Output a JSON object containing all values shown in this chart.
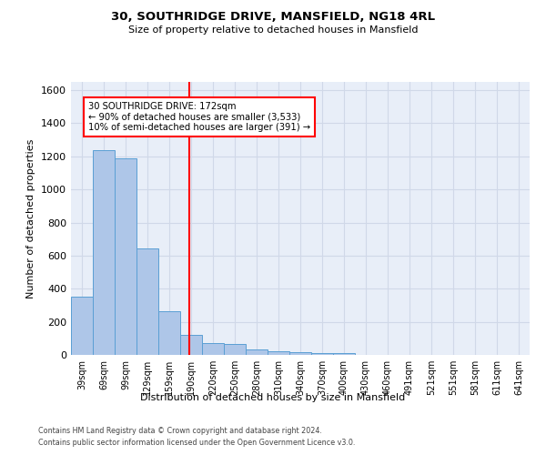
{
  "title": "30, SOUTHRIDGE DRIVE, MANSFIELD, NG18 4RL",
  "subtitle": "Size of property relative to detached houses in Mansfield",
  "xlabel": "Distribution of detached houses by size in Mansfield",
  "ylabel": "Number of detached properties",
  "footnote1": "Contains HM Land Registry data © Crown copyright and database right 2024.",
  "footnote2": "Contains public sector information licensed under the Open Government Licence v3.0.",
  "bar_labels": [
    "39sqm",
    "69sqm",
    "99sqm",
    "129sqm",
    "159sqm",
    "190sqm",
    "220sqm",
    "250sqm",
    "280sqm",
    "310sqm",
    "340sqm",
    "370sqm",
    "400sqm",
    "430sqm",
    "460sqm",
    "491sqm",
    "521sqm",
    "551sqm",
    "581sqm",
    "611sqm",
    "641sqm"
  ],
  "bar_values": [
    350,
    1235,
    1190,
    645,
    265,
    120,
    70,
    68,
    35,
    20,
    15,
    12,
    12,
    0,
    0,
    0,
    0,
    0,
    0,
    0,
    0
  ],
  "bar_color": "#aec6e8",
  "bar_edge_color": "#5a9fd4",
  "ylim": [
    0,
    1650
  ],
  "yticks": [
    0,
    200,
    400,
    600,
    800,
    1000,
    1200,
    1400,
    1600
  ],
  "red_line_x": 4.92,
  "annotation_text": "30 SOUTHRIDGE DRIVE: 172sqm\n← 90% of detached houses are smaller (3,533)\n10% of semi-detached houses are larger (391) →",
  "annotation_box_color": "white",
  "annotation_box_edge": "red",
  "grid_color": "#d0d8e8",
  "bg_color": "#e8eef8",
  "plot_bg_color": "#e8eef8"
}
